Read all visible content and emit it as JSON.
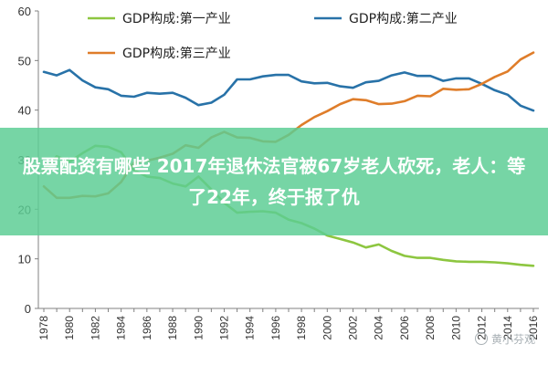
{
  "overlay": {
    "headline": "股票配资有哪些 2017年退休法官被67岁老人砍死，老人：等了22年，终于报了仇"
  },
  "watermark": {
    "text": "黄小芬观",
    "icon": "wechat-icon"
  },
  "chart_data": {
    "type": "line",
    "ylim": [
      0,
      60
    ],
    "yticks": [
      0,
      10,
      20,
      30,
      40,
      50,
      60
    ],
    "ytick_labels": [
      "0",
      "10",
      "20",
      "30",
      "40",
      "50",
      "60"
    ],
    "xlim": [
      1978,
      2016
    ],
    "xticks": [
      1978,
      1980,
      1982,
      1984,
      1986,
      1988,
      1990,
      1992,
      1994,
      1996,
      1998,
      2000,
      2002,
      2004,
      2006,
      2008,
      2010,
      2012,
      2014,
      2016
    ],
    "xtick_labels": [
      "1978",
      "1980",
      "1982",
      "1984",
      "1986",
      "1988",
      "1990",
      "1992",
      "1994",
      "1996",
      "1998",
      "2000",
      "2002",
      "2004",
      "2006",
      "2008",
      "2010",
      "2012",
      "2014",
      "2016"
    ],
    "grid": false,
    "legend_position": "top",
    "x": [
      1978,
      1979,
      1980,
      1981,
      1982,
      1983,
      1984,
      1985,
      1986,
      1987,
      1988,
      1989,
      1990,
      1991,
      1992,
      1993,
      1994,
      1995,
      1996,
      1997,
      1998,
      1999,
      2000,
      2001,
      2002,
      2003,
      2004,
      2005,
      2006,
      2007,
      2008,
      2009,
      2010,
      2011,
      2012,
      2013,
      2014,
      2015,
      2016
    ],
    "series": [
      {
        "name": "GDP构成:第一产业",
        "color": "#8dc640",
        "values": [
          27.7,
          30.7,
          29.6,
          31.3,
          32.8,
          32.6,
          31.5,
          27.9,
          26.6,
          26.3,
          25.2,
          24.6,
          26.6,
          24.0,
          21.3,
          19.3,
          19.5,
          19.6,
          19.3,
          17.9,
          17.2,
          16.1,
          14.7,
          14.0,
          13.3,
          12.3,
          12.9,
          11.6,
          10.6,
          10.2,
          10.2,
          9.8,
          9.5,
          9.4,
          9.4,
          9.3,
          9.1,
          8.8,
          8.6
        ]
      },
      {
        "name": "GDP构成:第二产业",
        "color": "#2872a8",
        "values": [
          47.7,
          47.0,
          48.1,
          46.0,
          44.6,
          44.2,
          42.9,
          42.7,
          43.5,
          43.3,
          43.5,
          42.5,
          41.0,
          41.5,
          43.1,
          46.2,
          46.2,
          46.8,
          47.1,
          47.1,
          45.8,
          45.4,
          45.5,
          44.8,
          44.5,
          45.6,
          45.9,
          47.0,
          47.6,
          46.9,
          46.9,
          45.9,
          46.4,
          46.4,
          45.3,
          44.0,
          43.1,
          40.9,
          39.9
        ]
      },
      {
        "name": "GDP构成:第三产业",
        "color": "#df7d2a",
        "values": [
          24.6,
          22.3,
          22.3,
          22.7,
          22.6,
          23.2,
          25.5,
          29.4,
          29.8,
          30.4,
          31.2,
          32.9,
          32.4,
          34.5,
          35.6,
          34.5,
          34.4,
          33.7,
          33.6,
          35.0,
          37.0,
          38.6,
          39.8,
          41.2,
          42.2,
          42.0,
          41.2,
          41.3,
          41.8,
          42.9,
          42.8,
          44.3,
          44.1,
          44.2,
          45.3,
          46.7,
          47.8,
          50.2,
          51.6
        ]
      }
    ]
  }
}
